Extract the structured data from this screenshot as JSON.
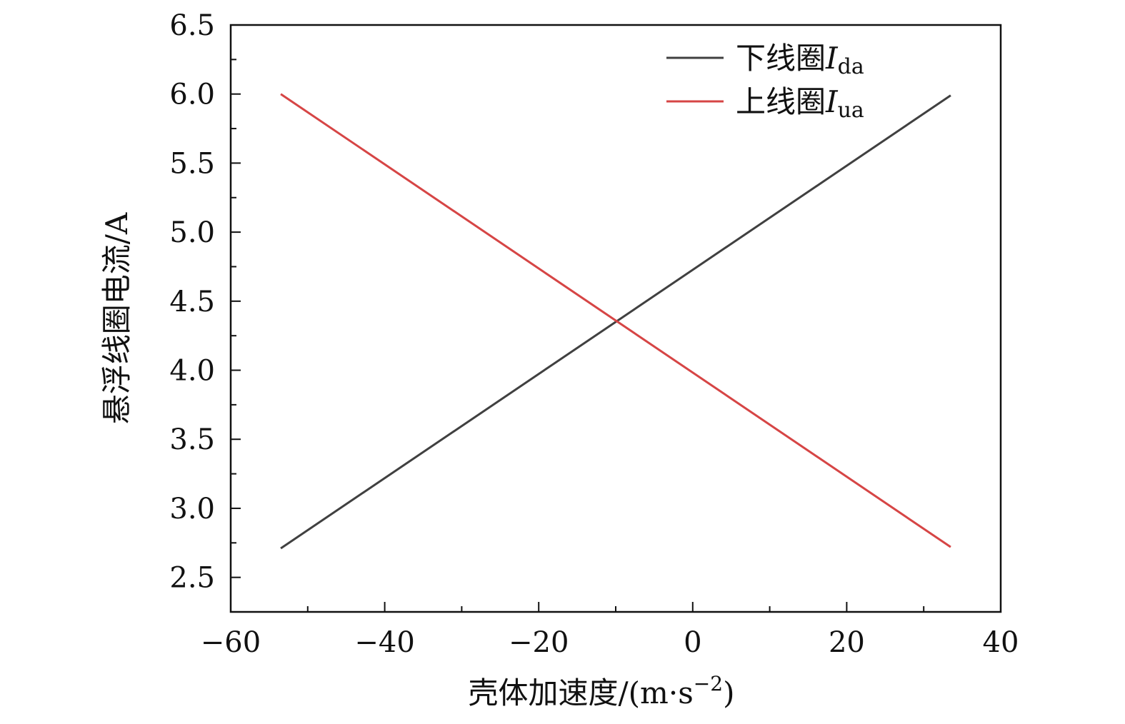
{
  "chart_data": {
    "type": "line",
    "xlabel": {
      "main": "壳体加速度/(m·s",
      "sup": "−2",
      "close": ")"
    },
    "ylabel": "悬浮线圈电流/A",
    "xlim": [
      -60,
      40
    ],
    "ylim": [
      2.25,
      6.5
    ],
    "xticks": [
      -60,
      -40,
      -20,
      0,
      20,
      40
    ],
    "xtick_labels": [
      "−60",
      "−40",
      "−20",
      "0",
      "20",
      "40"
    ],
    "yticks": [
      2.5,
      3.0,
      3.5,
      4.0,
      4.5,
      5.0,
      5.5,
      6.0,
      6.5
    ],
    "ytick_labels": [
      "2.5",
      "3.0",
      "3.5",
      "4.0",
      "4.5",
      "5.0",
      "5.5",
      "6.0",
      "6.5"
    ],
    "legend_position": "top-right",
    "series": [
      {
        "name": "下线圈",
        "symbol": "I",
        "subscript": "da",
        "color": "#404040",
        "x": [
          -53.5,
          33.5
        ],
        "y": [
          2.71,
          5.99
        ]
      },
      {
        "name": "上线圈",
        "symbol": "I",
        "subscript": "ua",
        "color": "#d64545",
        "x": [
          -53.5,
          33.5
        ],
        "y": [
          6.0,
          2.72
        ]
      }
    ]
  }
}
